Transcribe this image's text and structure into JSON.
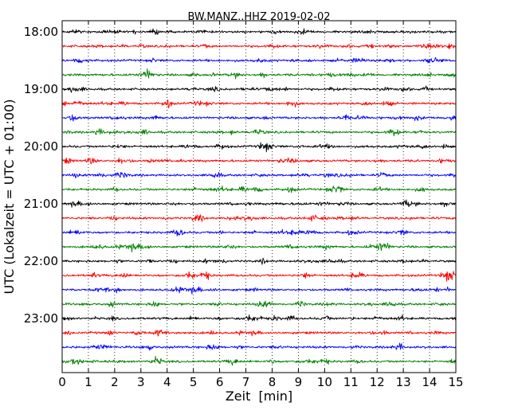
{
  "chart_data": {
    "type": "line",
    "title": "BW.MANZ..HHZ 2019-02-02",
    "xlabel": "Zeit  [min]",
    "ylabel": "UTC (Lokalzeit = UTC + 01:00)",
    "xlim": [
      0,
      15
    ],
    "x_ticks": [
      "0",
      "1",
      "2",
      "3",
      "4",
      "5",
      "6",
      "7",
      "8",
      "9",
      "10",
      "11",
      "12",
      "13",
      "14",
      "15"
    ],
    "y_ticks": [
      "18:00",
      "19:00",
      "20:00",
      "21:00",
      "22:00",
      "23:00"
    ],
    "grid": "vertical dotted lines at each minute",
    "series_colors": [
      "#000000",
      "#ff0000",
      "#0000ff",
      "#008000"
    ],
    "series": [
      {
        "start": "18:00",
        "values": []
      },
      {
        "start": "18:15",
        "values": []
      },
      {
        "start": "18:30",
        "values": []
      },
      {
        "start": "18:45",
        "values": []
      },
      {
        "start": "19:00",
        "values": []
      },
      {
        "start": "19:15",
        "values": []
      },
      {
        "start": "19:30",
        "values": []
      },
      {
        "start": "19:45",
        "values": []
      },
      {
        "start": "20:00",
        "values": []
      },
      {
        "start": "20:15",
        "values": []
      },
      {
        "start": "20:30",
        "values": []
      },
      {
        "start": "20:45",
        "values": []
      },
      {
        "start": "21:00",
        "values": []
      },
      {
        "start": "21:15",
        "values": []
      },
      {
        "start": "21:30",
        "values": []
      },
      {
        "start": "21:45",
        "values": []
      },
      {
        "start": "22:00",
        "values": []
      },
      {
        "start": "22:15",
        "values": []
      },
      {
        "start": "22:30",
        "values": []
      },
      {
        "start": "22:45",
        "values": []
      },
      {
        "start": "23:00",
        "values": []
      },
      {
        "start": "23:15",
        "values": []
      },
      {
        "start": "23:30",
        "values": []
      },
      {
        "start": "23:45",
        "values": []
      }
    ]
  }
}
